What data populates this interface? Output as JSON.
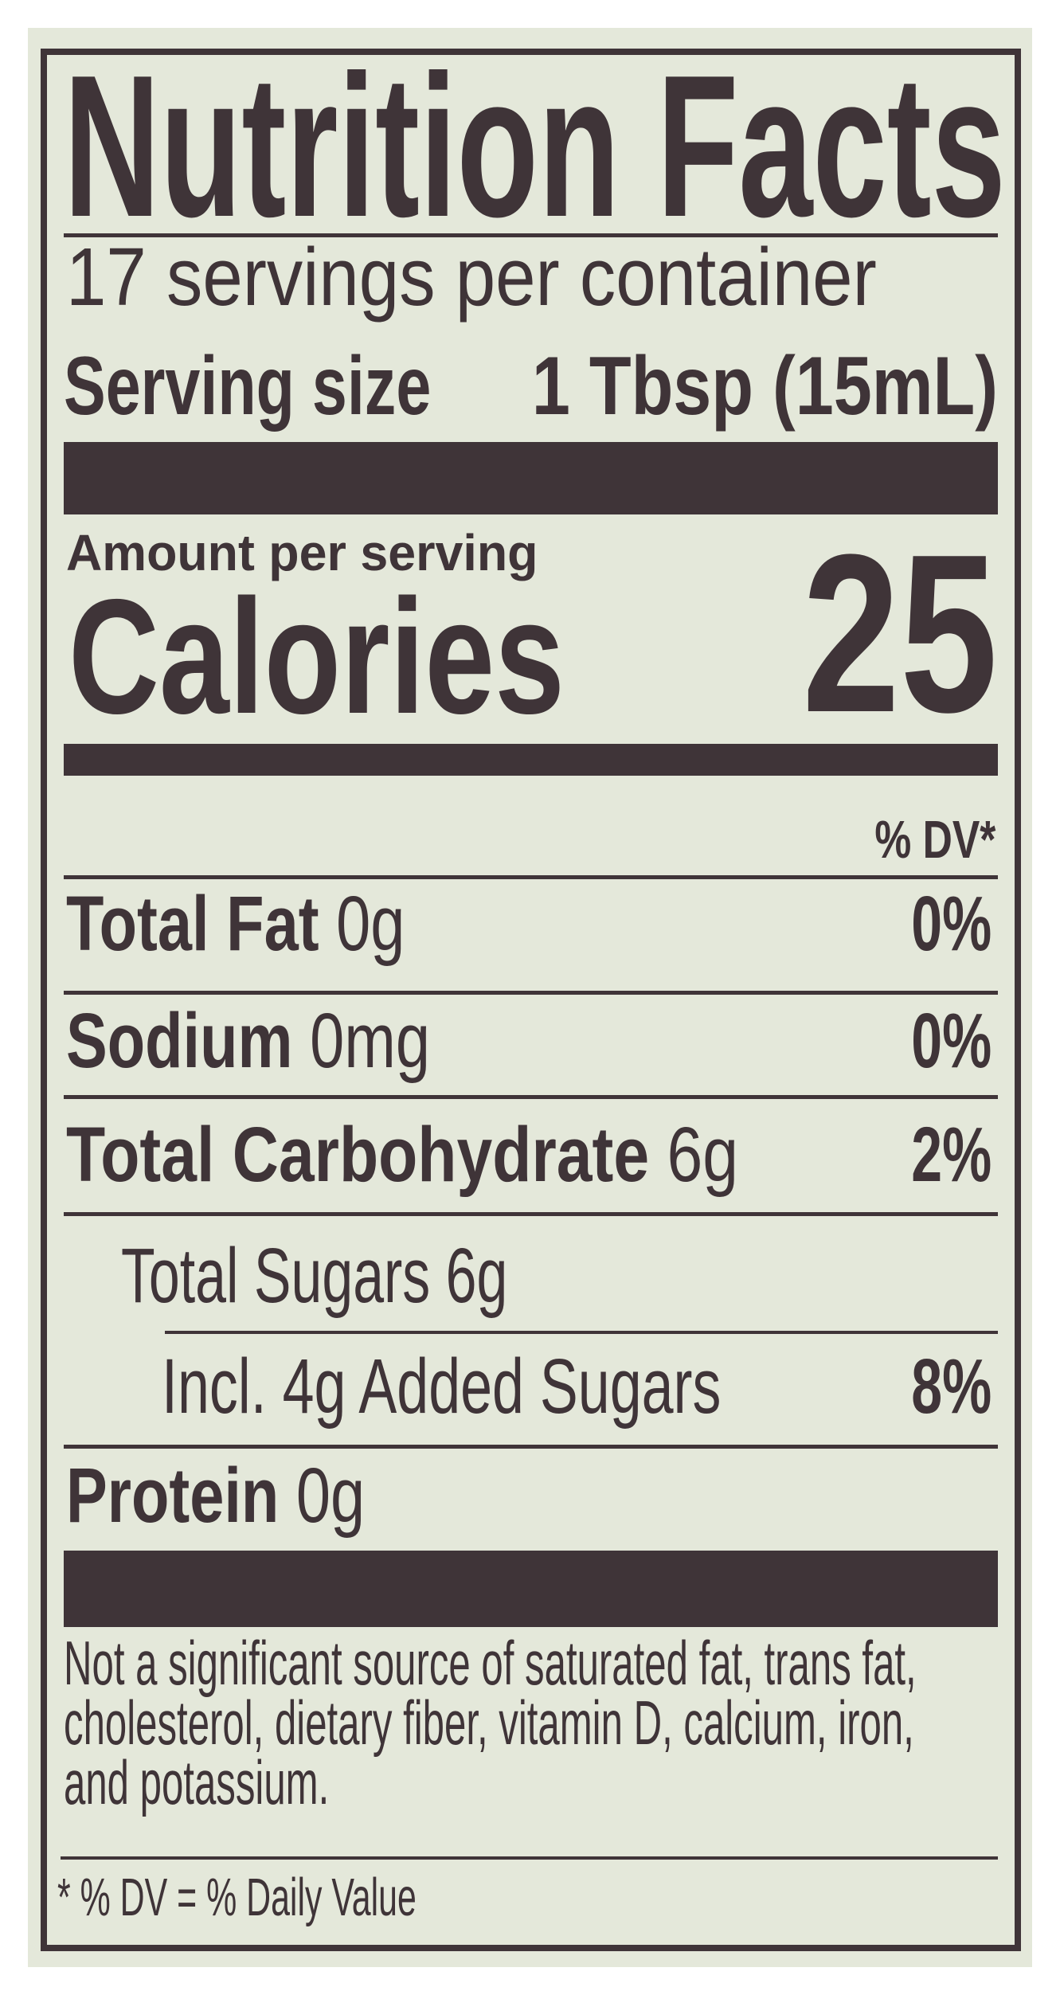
{
  "title": "Nutrition Facts",
  "servings_per_container": "17 servings per container",
  "serving_size": {
    "label": "Serving size",
    "value": "1 Tbsp (15mL)"
  },
  "amount_per_serving": "Amount per serving",
  "calories": {
    "label": "Calories",
    "value": "25"
  },
  "dv_header": "% DV*",
  "nutrients": [
    {
      "name": "Total Fat",
      "amount": "0g",
      "dv": "0%"
    },
    {
      "name": "Sodium",
      "amount": "0mg",
      "dv": "0%"
    },
    {
      "name": "Total Carbohydrate",
      "amount": "6g",
      "dv": "2%"
    },
    {
      "name": "Total Sugars 6g",
      "amount": "",
      "dv": ""
    },
    {
      "name": "Incl. 4g Added Sugars",
      "amount": "",
      "dv": "8%"
    },
    {
      "name": "Protein",
      "amount": "0g",
      "dv": ""
    }
  ],
  "footnote_lines": [
    "Not a significant source of saturated fat, trans fat,",
    "cholesterol, dietary fiber, vitamin D, calcium, iron,",
    "and potassium."
  ],
  "dv_note": "* % DV = % Daily Value",
  "colors": {
    "ink": "#3f3438",
    "label_background": "#e4e8da"
  }
}
